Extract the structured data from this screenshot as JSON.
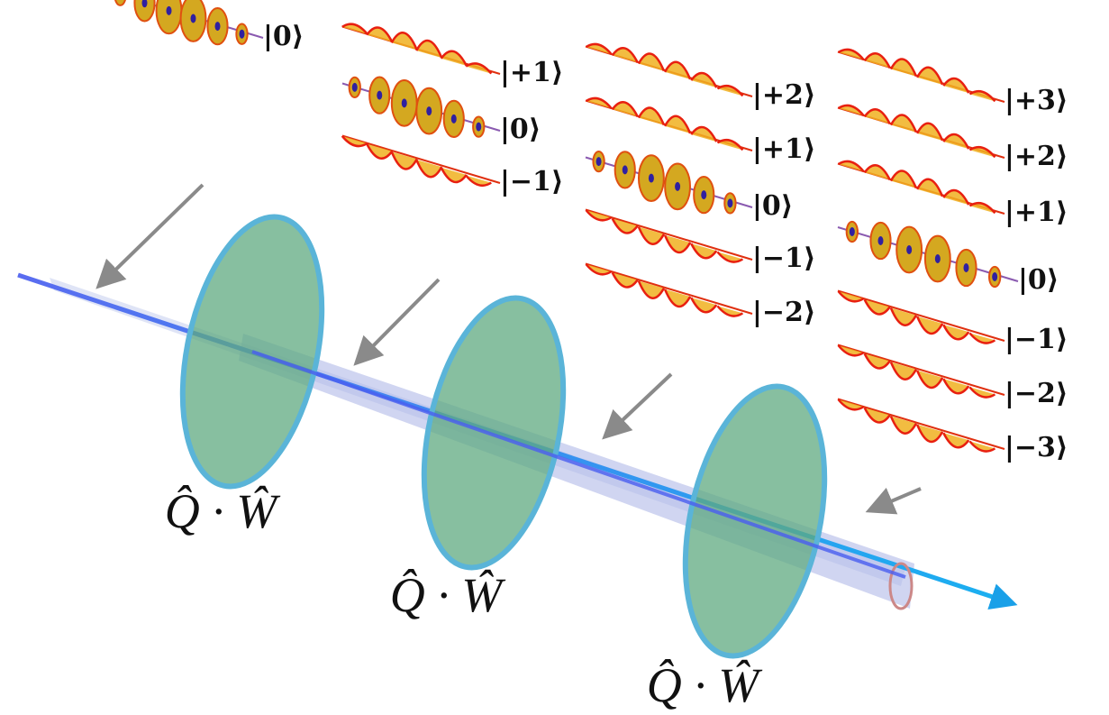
{
  "kets": [
    [
      "|0⟩"
    ],
    [
      "|+1⟩",
      "|0⟩",
      "|−1⟩"
    ],
    [
      "|+2⟩",
      "|+1⟩",
      "|0⟩",
      "|−1⟩",
      "|−2⟩"
    ],
    [
      "|+3⟩",
      "|+2⟩",
      "|+1⟩",
      "|0⟩",
      "|−1⟩",
      "|−2⟩",
      "|−3⟩"
    ]
  ],
  "operators": [
    "Q̂ · Ŵ",
    "Q̂ · Ŵ",
    "Q̂ · Ŵ"
  ]
}
